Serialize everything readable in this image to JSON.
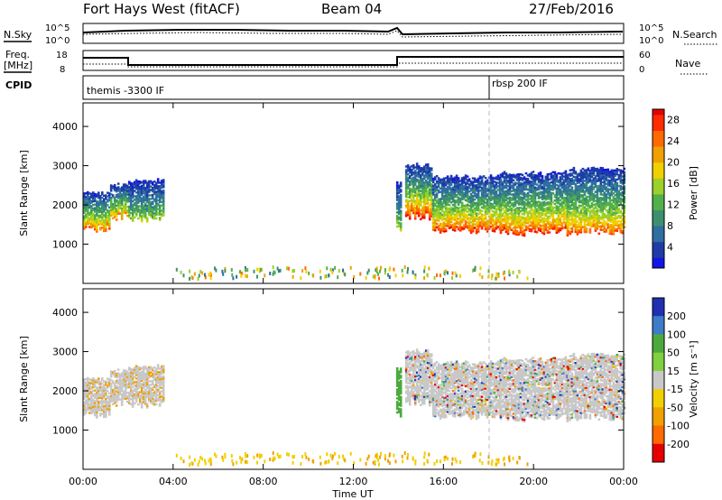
{
  "header": {
    "radar": "Fort Hays West (fitACF)",
    "beam": "Beam 04",
    "date": "27/Feb/2016"
  },
  "summary_panels": {
    "nsky_label": "N.Sky",
    "nsearch_label": "N.Search",
    "noise_ticks": [
      "10^5",
      "10^0"
    ],
    "freq_label_1": "Freq.",
    "freq_label_2": "[MHz]",
    "freq_ticks": [
      "18",
      "8"
    ],
    "nave_label": "Nave",
    "nave_ticks": [
      "60",
      "0"
    ],
    "cpid_label": "CPID",
    "cpid_segments": [
      {
        "label": "themis -3300 IF",
        "start": 0
      },
      {
        "label": "rbsp 200 IF",
        "start": 18
      }
    ]
  },
  "chart_data": [
    {
      "type": "heatmap",
      "quantity": "Power",
      "ylabel": "Slant Range [km]",
      "xlabel": "Time UT",
      "xlim": [
        0,
        24
      ],
      "ylim": [
        0,
        4600
      ],
      "yticks": [
        "1000",
        "2000",
        "3000",
        "4000"
      ],
      "xticks": [
        "00:00",
        "04:00",
        "08:00",
        "12:00",
        "16:00",
        "20:00",
        "00:00"
      ],
      "colorbar": {
        "label": "Power [dB]",
        "ticks": [
          "4",
          "8",
          "12",
          "16",
          "20",
          "24",
          "28"
        ],
        "range": [
          0,
          30
        ]
      },
      "regions": [
        {
          "t0": 0.0,
          "t1": 1.2,
          "r_low": 1400,
          "r_high": 2300,
          "power_peak": 24
        },
        {
          "t0": 1.2,
          "t1": 2.0,
          "r_low": 1700,
          "r_high": 2500,
          "power_peak": 22
        },
        {
          "t0": 2.0,
          "t1": 3.6,
          "r_low": 1650,
          "r_high": 2600,
          "power_peak": 14
        },
        {
          "t0": 13.9,
          "t1": 14.1,
          "r_low": 1400,
          "r_high": 2600,
          "power_peak": 14
        },
        {
          "t0": 14.3,
          "t1": 15.5,
          "r_low": 1700,
          "r_high": 3000,
          "power_peak": 28
        },
        {
          "t0": 15.5,
          "t1": 18.5,
          "r_low": 1350,
          "r_high": 2700,
          "power_peak": 26
        },
        {
          "t0": 18.5,
          "t1": 21.5,
          "r_low": 1300,
          "r_high": 2800,
          "power_peak": 26
        },
        {
          "t0": 21.5,
          "t1": 24.0,
          "r_low": 1300,
          "r_high": 2900,
          "power_peak": 24
        }
      ],
      "ground_scatter": {
        "t0": 4.0,
        "t1": 20.0,
        "r_low": 100,
        "r_high": 400
      }
    },
    {
      "type": "heatmap",
      "quantity": "Velocity",
      "ylabel": "Slant Range [km]",
      "xlabel": "Time UT",
      "xlim": [
        0,
        24
      ],
      "ylim": [
        0,
        4600
      ],
      "yticks": [
        "1000",
        "2000",
        "3000",
        "4000"
      ],
      "xticks": [
        "00:00",
        "04:00",
        "08:00",
        "12:00",
        "16:00",
        "20:00",
        "00:00"
      ],
      "colorbar": {
        "label": "Velocity [m s⁻¹]",
        "ticks": [
          "200",
          "100",
          "50",
          "15",
          "-15",
          "-50",
          "-100",
          "-200"
        ],
        "range": [
          -250,
          250
        ]
      },
      "ground_scatter_color": "#c8c8c8",
      "regions": [
        {
          "t0": 0.0,
          "t1": 3.6,
          "r_low": 1400,
          "r_high": 2600,
          "velocity": -40
        },
        {
          "t0": 13.9,
          "t1": 14.1,
          "r_low": 1400,
          "r_high": 2600,
          "velocity": 40
        },
        {
          "t0": 14.3,
          "t1": 24.0,
          "r_low": 1300,
          "r_high": 3000,
          "velocity": 0
        }
      ]
    }
  ]
}
